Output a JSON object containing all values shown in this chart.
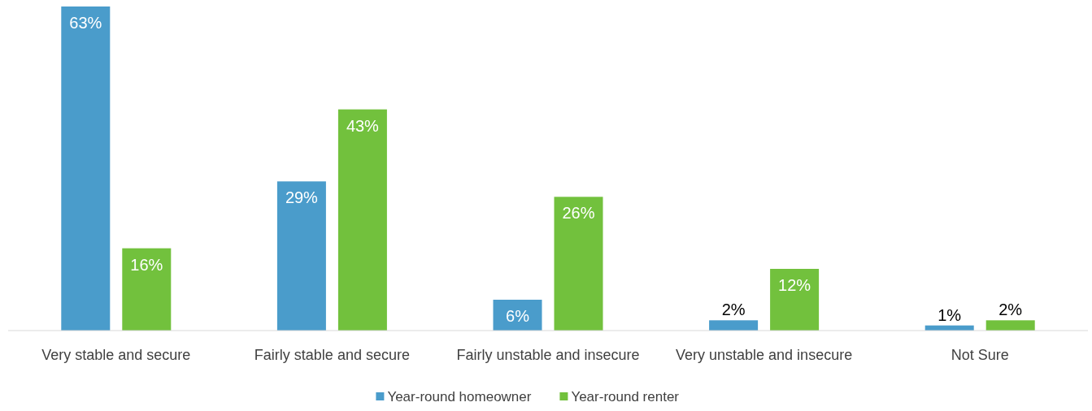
{
  "chart_data": {
    "type": "bar",
    "categories": [
      "Very stable and secure",
      "Fairly stable and secure",
      "Fairly unstable and insecure",
      "Very unstable and insecure",
      "Not Sure"
    ],
    "series": [
      {
        "name": "Year-round homeowner",
        "color": "#4a9ccb",
        "values": [
          63,
          29,
          6,
          2,
          1
        ],
        "value_labels": [
          "63%",
          "29%",
          "6%",
          "2%",
          "1%"
        ]
      },
      {
        "name": "Year-round renter",
        "color": "#72c13d",
        "values": [
          16,
          43,
          26,
          12,
          2
        ],
        "value_labels": [
          "16%",
          "43%",
          "26%",
          "12%",
          "2%"
        ]
      }
    ],
    "legend": "bottom"
  }
}
